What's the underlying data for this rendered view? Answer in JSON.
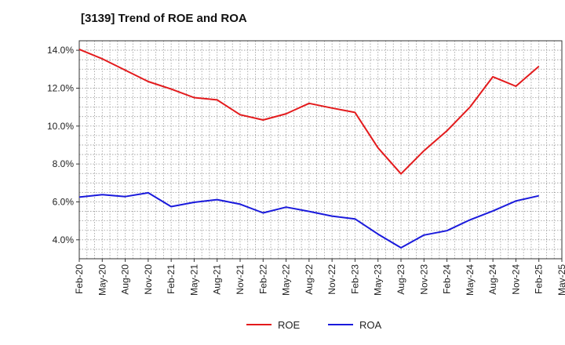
{
  "chart_data": {
    "type": "line",
    "title": "[3139]  Trend of ROE and ROA",
    "categories": [
      "Feb-20",
      "May-20",
      "Aug-20",
      "Nov-20",
      "Feb-21",
      "May-21",
      "Aug-21",
      "Nov-21",
      "Feb-22",
      "May-22",
      "Aug-22",
      "Nov-22",
      "Feb-23",
      "May-23",
      "Aug-23",
      "Nov-23",
      "Feb-24",
      "May-24",
      "Aug-24",
      "Nov-24",
      "Feb-25",
      "May-25"
    ],
    "y_tick_labels": [
      "4.0%",
      "6.0%",
      "8.0%",
      "10.0%",
      "12.0%",
      "14.0%"
    ],
    "y_ticks": [
      4,
      6,
      8,
      10,
      12,
      14
    ],
    "ylim": [
      3.0,
      14.5
    ],
    "grid": true,
    "legend_position": "bottom-center",
    "series": [
      {
        "name": "ROE",
        "color": "#e31a1c",
        "values": [
          14.05,
          13.55,
          12.95,
          12.35,
          11.95,
          11.5,
          11.38,
          10.6,
          10.32,
          10.65,
          11.2,
          10.95,
          10.72,
          8.85,
          7.48,
          8.7,
          9.75,
          11.0,
          12.6,
          12.1,
          13.15,
          null
        ]
      },
      {
        "name": "ROA",
        "color": "#1a1adc",
        "values": [
          6.25,
          6.38,
          6.28,
          6.48,
          5.75,
          5.98,
          6.12,
          5.88,
          5.42,
          5.72,
          5.5,
          5.25,
          5.1,
          4.3,
          3.58,
          4.25,
          4.48,
          5.05,
          5.52,
          6.05,
          6.32,
          null
        ]
      }
    ]
  }
}
